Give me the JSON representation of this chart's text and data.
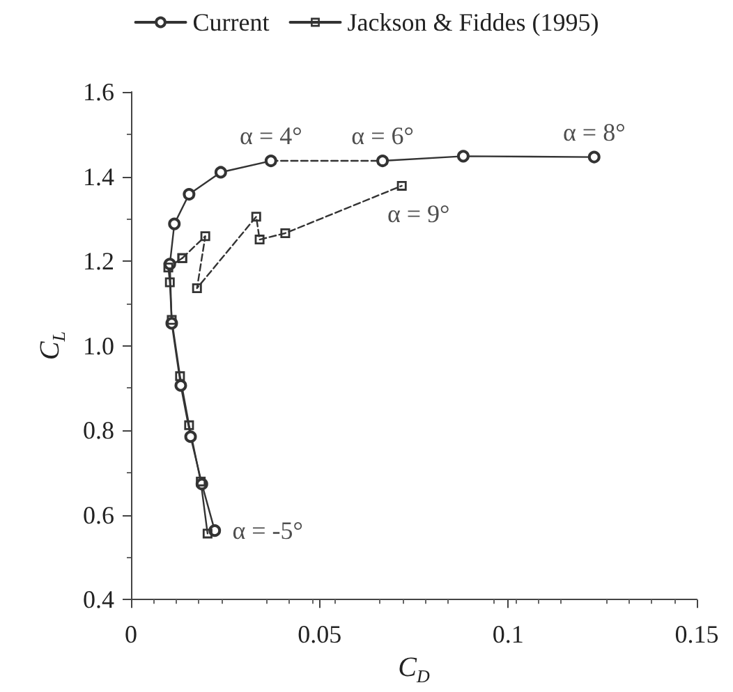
{
  "chart_data": {
    "type": "line",
    "xlabel": "C$_{D}$",
    "ylabel": "C$_{L}$",
    "xlim": [
      0,
      0.15
    ],
    "xticks": [
      0,
      0.05,
      {
        "value": 0.1,
        "label": "0.1"
      },
      0.15
    ],
    "ylim": [
      0.4,
      1.6
    ],
    "yticks": [
      {
        "value": 0.4,
        "label": "0.4"
      },
      {
        "value": 0.6,
        "label": "0.6"
      },
      {
        "value": 0.8,
        "label": "0.8"
      },
      {
        "value": 1.0,
        "label": "1.0"
      },
      {
        "value": 1.2,
        "label": "1.2"
      },
      {
        "value": 1.4,
        "label": "1.4"
      },
      {
        "value": 1.6,
        "label": "1.6"
      }
    ],
    "grid": false,
    "legend": "top",
    "line_style": "solid",
    "series": [
      {
        "name": "Current",
        "color": "#333333",
        "marker": "circle",
        "x": [
          0.0222,
          0.0188,
          0.0158,
          0.0132,
          0.0108,
          0.0103,
          0.0115,
          0.0154,
          0.0238,
          0.0371
        ],
        "values": [
          0.563,
          0.673,
          0.785,
          0.906,
          1.053,
          1.193,
          1.288,
          1.358,
          1.41,
          1.437
        ]
      },
      {
        "color": "#333333",
        "marker": "circle",
        "x": [
          0.0667,
          0.0881,
          0.1228
        ],
        "values": [
          1.437,
          1.448,
          1.446
        ]
      },
      {
        "name": "Jackson & Fiddes (1995)",
        "color": "#333333",
        "marker": "square",
        "x": [
          0.0203,
          0.0185,
          0.0154,
          0.013,
          0.0108,
          0.0103,
          0.0099,
          0.0136
        ],
        "values": [
          0.556,
          0.679,
          0.812,
          0.928,
          1.061,
          1.15,
          1.185,
          1.207
        ]
      },
      {
        "color": "#333333",
        "marker": "none",
        "line_style": "dashed",
        "x": [
          0.0371,
          0.0667
        ],
        "values": [
          1.437,
          1.437
        ]
      },
      {
        "color": "#333333",
        "marker": "square",
        "line_style": "dashed",
        "x": [
          0.0136,
          0.0197,
          0.0175,
          0.0332,
          0.0341,
          0.0409,
          0.0718
        ],
        "values": [
          1.207,
          1.259,
          1.136,
          1.305,
          1.251,
          1.266,
          1.378
        ]
      }
    ],
    "annotations": [
      {
        "text": "α = 4°",
        "x": 0.0371,
        "y": 1.437
      },
      {
        "text": "α = 6°",
        "x": 0.0667,
        "y": 1.437
      },
      {
        "text": "α = 8°",
        "x": 0.1228,
        "y": 1.446
      },
      {
        "text": "α = 9°",
        "x": 0.0718,
        "y": 1.378
      },
      {
        "text": "α = -5°",
        "x": 0.0222,
        "y": 0.563
      }
    ]
  }
}
